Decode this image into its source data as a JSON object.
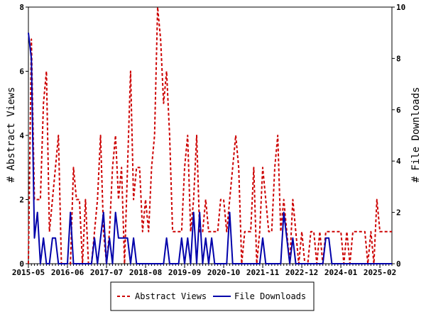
{
  "chart_data": {
    "type": "line",
    "x_tick_labels": [
      "2015-05",
      "2016-06",
      "2017-07",
      "2018-08",
      "2019-09",
      "2020-10",
      "2021-11",
      "2022-12",
      "2024-01",
      "2025-02"
    ],
    "x_range": [
      "2015-05",
      "2025-06"
    ],
    "ylabel": "# Abstract Views",
    "y2label": "# File Downloads",
    "ylim": [
      0,
      8
    ],
    "y2lim": [
      0,
      10
    ],
    "y_ticks": [
      0,
      2,
      4,
      6,
      8
    ],
    "y2_ticks": [
      0,
      2,
      4,
      6,
      8,
      10
    ],
    "grid": false,
    "legend_position": "bottom-center",
    "series": [
      {
        "name": "Abstract Views",
        "axis": "left",
        "color": "#cc0000",
        "style": "dashed",
        "x": [
          "2015-05",
          "2015-06",
          "2015-07",
          "2015-08",
          "2015-09",
          "2015-10",
          "2015-11",
          "2015-12",
          "2016-01",
          "2016-02",
          "2016-03",
          "2016-04",
          "2016-05",
          "2016-06",
          "2016-07",
          "2016-08",
          "2016-09",
          "2016-10",
          "2016-11",
          "2016-12",
          "2017-01",
          "2017-02",
          "2017-03",
          "2017-04",
          "2017-05",
          "2017-06",
          "2017-07",
          "2017-08",
          "2017-09",
          "2017-10",
          "2017-11",
          "2017-12",
          "2018-01",
          "2018-02",
          "2018-03",
          "2018-04",
          "2018-05",
          "2018-06",
          "2018-07",
          "2018-08",
          "2018-09",
          "2018-10",
          "2018-11",
          "2018-12",
          "2019-01",
          "2019-02",
          "2019-03",
          "2019-04",
          "2019-05",
          "2019-06",
          "2019-07",
          "2019-08",
          "2019-09",
          "2019-10",
          "2019-11",
          "2019-12",
          "2020-01",
          "2020-02",
          "2020-03",
          "2020-04",
          "2020-05",
          "2020-06",
          "2020-07",
          "2020-08",
          "2020-09",
          "2020-10",
          "2020-11",
          "2020-12",
          "2021-01",
          "2021-02",
          "2021-03",
          "2021-04",
          "2021-05",
          "2021-06",
          "2021-07",
          "2021-08",
          "2021-09",
          "2021-10",
          "2021-11",
          "2021-12",
          "2022-01",
          "2022-02",
          "2022-03",
          "2022-04",
          "2022-05",
          "2022-06",
          "2022-07",
          "2022-08",
          "2022-09",
          "2022-10",
          "2022-11",
          "2022-12",
          "2023-01",
          "2023-02",
          "2023-03",
          "2023-04",
          "2023-05",
          "2023-06",
          "2023-07",
          "2023-08",
          "2023-09",
          "2023-10",
          "2023-11",
          "2023-12",
          "2024-01",
          "2024-02",
          "2024-03",
          "2024-04",
          "2024-05",
          "2024-06",
          "2024-07",
          "2024-08",
          "2024-09",
          "2024-10",
          "2024-11",
          "2024-12",
          "2025-01",
          "2025-02",
          "2025-03",
          "2025-04",
          "2025-05",
          "2025-06"
        ],
        "values": [
          0,
          7,
          2,
          2,
          2,
          5,
          6,
          1,
          2,
          3,
          4,
          0,
          0,
          0,
          0,
          3,
          2,
          2,
          0,
          2,
          0,
          0,
          1,
          2,
          4,
          1,
          0,
          1,
          3,
          4,
          2,
          3,
          0,
          3,
          6,
          2,
          3,
          3,
          1,
          2,
          1,
          3,
          4,
          8,
          7,
          5,
          6,
          4,
          1,
          1,
          1,
          1,
          3,
          4,
          1,
          2,
          4,
          1,
          1,
          2,
          1,
          1,
          1,
          1,
          2,
          2,
          1,
          2,
          3,
          4,
          3,
          0,
          1,
          1,
          1,
          3,
          0,
          1,
          3,
          2,
          1,
          1,
          3,
          4,
          1,
          2,
          1,
          0,
          2,
          1,
          0,
          1,
          0,
          0,
          1,
          1,
          0,
          1,
          0,
          1,
          1,
          1,
          1,
          1,
          1,
          0,
          1,
          0,
          1,
          1,
          1,
          1,
          1,
          0,
          1,
          0,
          2,
          1,
          1,
          1,
          1,
          1
        ]
      },
      {
        "name": "File Downloads",
        "axis": "right",
        "color": "#0000aa",
        "style": "solid",
        "x": [
          "2015-05",
          "2015-06",
          "2015-07",
          "2015-08",
          "2015-09",
          "2015-10",
          "2015-11",
          "2015-12",
          "2016-01",
          "2016-02",
          "2016-03",
          "2016-04",
          "2016-05",
          "2016-06",
          "2016-07",
          "2016-08",
          "2016-09",
          "2016-10",
          "2016-11",
          "2016-12",
          "2017-01",
          "2017-02",
          "2017-03",
          "2017-04",
          "2017-05",
          "2017-06",
          "2017-07",
          "2017-08",
          "2017-09",
          "2017-10",
          "2017-11",
          "2017-12",
          "2018-01",
          "2018-02",
          "2018-03",
          "2018-04",
          "2018-05",
          "2018-06",
          "2018-07",
          "2018-08",
          "2018-09",
          "2018-10",
          "2018-11",
          "2018-12",
          "2019-01",
          "2019-02",
          "2019-03",
          "2019-04",
          "2019-05",
          "2019-06",
          "2019-07",
          "2019-08",
          "2019-09",
          "2019-10",
          "2019-11",
          "2019-12",
          "2020-01",
          "2020-02",
          "2020-03",
          "2020-04",
          "2020-05",
          "2020-06",
          "2020-07",
          "2020-08",
          "2020-09",
          "2020-10",
          "2020-11",
          "2020-12",
          "2021-01",
          "2021-02",
          "2021-03",
          "2021-04",
          "2021-05",
          "2021-06",
          "2021-07",
          "2021-08",
          "2021-09",
          "2021-10",
          "2021-11",
          "2021-12",
          "2022-01",
          "2022-02",
          "2022-03",
          "2022-04",
          "2022-05",
          "2022-06",
          "2022-07",
          "2022-08",
          "2022-09",
          "2022-10",
          "2022-11",
          "2022-12",
          "2023-01",
          "2023-02",
          "2023-03",
          "2023-04",
          "2023-05",
          "2023-06",
          "2023-07",
          "2023-08",
          "2023-09",
          "2023-10",
          "2023-11",
          "2023-12",
          "2024-01",
          "2024-02",
          "2024-03",
          "2024-04",
          "2024-05",
          "2024-06",
          "2024-07",
          "2024-08",
          "2024-09",
          "2024-10",
          "2024-11",
          "2024-12",
          "2025-01",
          "2025-02",
          "2025-03",
          "2025-04",
          "2025-05",
          "2025-06"
        ],
        "values": [
          9,
          8,
          1,
          2,
          0,
          1,
          0,
          0,
          1,
          1,
          0,
          0,
          0,
          0,
          2,
          0,
          0,
          0,
          0,
          0,
          0,
          0,
          1,
          0,
          1,
          2,
          0,
          1,
          0,
          2,
          1,
          1,
          1,
          1,
          0,
          1,
          0,
          0,
          0,
          0,
          0,
          0,
          0,
          0,
          0,
          0,
          1,
          0,
          0,
          0,
          0,
          1,
          0,
          1,
          0,
          2,
          0,
          2,
          0,
          1,
          0,
          1,
          0,
          0,
          0,
          0,
          0,
          2,
          0,
          0,
          0,
          0,
          0,
          0,
          0,
          0,
          0,
          0,
          1,
          0,
          0,
          0,
          0,
          0,
          0,
          2,
          1,
          0,
          1,
          0,
          0,
          0,
          0,
          0,
          0,
          0,
          0,
          0,
          0,
          1,
          1,
          0,
          0,
          0,
          0,
          0,
          0,
          0,
          0,
          0,
          0,
          0,
          0,
          0,
          0,
          0,
          0,
          0,
          0,
          0,
          0,
          0
        ]
      }
    ]
  },
  "legend": {
    "abstract_views_label": "Abstract Views",
    "file_downloads_label": "File Downloads"
  },
  "colors": {
    "abstract_views": "#cc0000",
    "file_downloads": "#0000aa",
    "axis": "#000000"
  }
}
